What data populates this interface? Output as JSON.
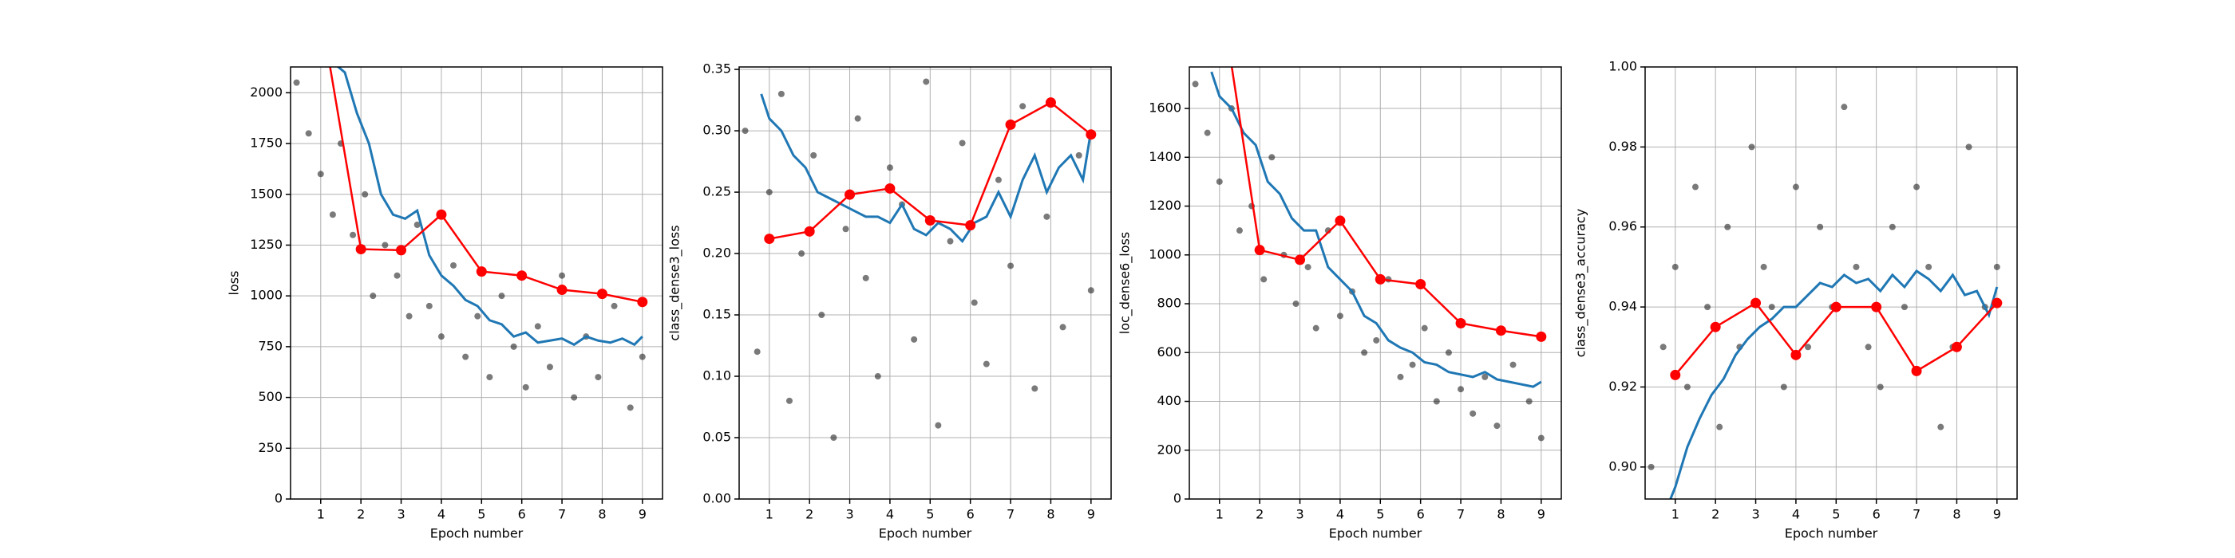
{
  "chart_data": [
    {
      "type": "scatter",
      "x_label": "Epoch number",
      "y_label": "loss",
      "xlim": [
        0.25,
        9.5
      ],
      "ylim": [
        0,
        2127
      ],
      "xticks": [
        1,
        2,
        3,
        4,
        5,
        6,
        7,
        8,
        9
      ],
      "yticks": [
        0,
        250,
        500,
        750,
        1000,
        1250,
        1500,
        1750,
        2000
      ],
      "grid": true,
      "series": [
        {
          "type": "scatter",
          "color": "#222222",
          "x": [
            0.4,
            0.7,
            1.0,
            1.3,
            1.5,
            1.8,
            2.1,
            2.3,
            2.6,
            2.9,
            3.2,
            3.4,
            3.7,
            4.0,
            4.3,
            4.6,
            4.9,
            5.2,
            5.5,
            5.8,
            6.1,
            6.4,
            6.7,
            7.0,
            7.3,
            7.6,
            7.9,
            8.3,
            8.7,
            9.0
          ],
          "values": [
            2050,
            1800,
            1600,
            1400,
            1750,
            1300,
            1500,
            1000,
            1250,
            1100,
            900,
            1350,
            950,
            800,
            1150,
            700,
            900,
            600,
            1000,
            750,
            550,
            850,
            650,
            1100,
            500,
            800,
            600,
            950,
            450,
            700
          ]
        },
        {
          "type": "line",
          "color": "#1f77b4",
          "x": [
            0.8,
            1,
            1.3,
            1.6,
            1.9,
            2.2,
            2.5,
            2.8,
            3.1,
            3.4,
            3.7,
            4,
            4.3,
            4.6,
            4.9,
            5.2,
            5.5,
            5.8,
            6.1,
            6.4,
            6.7,
            7,
            7.3,
            7.6,
            7.9,
            8.2,
            8.5,
            8.8,
            9
          ],
          "values": [
            2300,
            2200,
            2150,
            2100,
            1900,
            1750,
            1500,
            1400,
            1380,
            1420,
            1200,
            1100,
            1050,
            980,
            950,
            880,
            860,
            800,
            820,
            770,
            780,
            790,
            760,
            800,
            780,
            770,
            790,
            760,
            800
          ]
        },
        {
          "type": "line-markers",
          "color": "#ff0000",
          "x": [
            1,
            2,
            3,
            4,
            5,
            6,
            7,
            8,
            9
          ],
          "values": [
            2400,
            1230,
            1225,
            1400,
            1120,
            1100,
            1030,
            1010,
            970
          ]
        }
      ]
    },
    {
      "type": "scatter",
      "x_label": "Epoch number",
      "y_label": "class_dense3_loss",
      "xlim": [
        0.25,
        9.5
      ],
      "ylim": [
        0,
        0.352
      ],
      "xticks": [
        1,
        2,
        3,
        4,
        5,
        6,
        7,
        8,
        9
      ],
      "yticks": [
        {
          "value": 0,
          "label": "0.00"
        },
        0.05,
        {
          "value": 0.1,
          "label": "0.10"
        },
        0.15,
        {
          "value": 0.2,
          "label": "0.20"
        },
        0.25,
        {
          "value": 0.3,
          "label": "0.30"
        },
        0.35
      ],
      "grid": true,
      "series": [
        {
          "type": "scatter",
          "color": "#222222",
          "x": [
            0.4,
            0.7,
            1.0,
            1.3,
            1.5,
            1.8,
            2.1,
            2.3,
            2.6,
            2.9,
            3.2,
            3.4,
            3.7,
            4.0,
            4.3,
            4.6,
            4.9,
            5.2,
            5.5,
            5.8,
            6.1,
            6.4,
            6.7,
            7.0,
            7.3,
            7.6,
            7.9,
            8.3,
            8.7,
            9.0
          ],
          "values": [
            0.3,
            0.12,
            0.25,
            0.33,
            0.08,
            0.2,
            0.28,
            0.15,
            0.05,
            0.22,
            0.31,
            0.18,
            0.1,
            0.27,
            0.24,
            0.13,
            0.34,
            0.06,
            0.21,
            0.29,
            0.16,
            0.11,
            0.26,
            0.19,
            0.32,
            0.09,
            0.23,
            0.14,
            0.28,
            0.17
          ]
        },
        {
          "type": "line",
          "color": "#1f77b4",
          "x": [
            0.8,
            1,
            1.3,
            1.6,
            1.9,
            2.2,
            2.5,
            2.8,
            3.1,
            3.4,
            3.7,
            4,
            4.3,
            4.6,
            4.9,
            5.2,
            5.5,
            5.8,
            6.1,
            6.4,
            6.7,
            7,
            7.3,
            7.6,
            7.9,
            8.2,
            8.5,
            8.8,
            9
          ],
          "values": [
            0.33,
            0.31,
            0.3,
            0.28,
            0.27,
            0.25,
            0.245,
            0.24,
            0.235,
            0.23,
            0.23,
            0.225,
            0.24,
            0.22,
            0.215,
            0.225,
            0.22,
            0.21,
            0.225,
            0.23,
            0.25,
            0.23,
            0.26,
            0.28,
            0.25,
            0.27,
            0.28,
            0.26,
            0.3
          ]
        },
        {
          "type": "line-markers",
          "color": "#ff0000",
          "x": [
            1,
            2,
            3,
            4,
            5,
            6,
            7,
            8,
            9
          ],
          "values": [
            0.212,
            0.218,
            0.248,
            0.253,
            0.227,
            0.223,
            0.305,
            0.323,
            0.297
          ]
        }
      ]
    },
    {
      "type": "scatter",
      "x_label": "Epoch number",
      "y_label": "loc_dense6_loss",
      "xlim": [
        0.25,
        9.5
      ],
      "ylim": [
        0,
        1770
      ],
      "xticks": [
        1,
        2,
        3,
        4,
        5,
        6,
        7,
        8,
        9
      ],
      "yticks": [
        0,
        200,
        400,
        600,
        800,
        1000,
        1200,
        1400,
        1600
      ],
      "grid": true,
      "series": [
        {
          "type": "scatter",
          "color": "#222222",
          "x": [
            0.4,
            0.7,
            1.0,
            1.3,
            1.5,
            1.8,
            2.1,
            2.3,
            2.6,
            2.9,
            3.2,
            3.4,
            3.7,
            4.0,
            4.3,
            4.6,
            4.9,
            5.2,
            5.5,
            5.8,
            6.1,
            6.4,
            6.7,
            7.0,
            7.3,
            7.6,
            7.9,
            8.3,
            8.7,
            9.0
          ],
          "values": [
            1700,
            1500,
            1300,
            1600,
            1100,
            1200,
            900,
            1400,
            1000,
            800,
            950,
            700,
            1100,
            750,
            850,
            600,
            650,
            900,
            500,
            550,
            700,
            400,
            600,
            450,
            350,
            500,
            300,
            550,
            400,
            250
          ]
        },
        {
          "type": "line",
          "color": "#1f77b4",
          "x": [
            0.8,
            1,
            1.3,
            1.6,
            1.9,
            2.2,
            2.5,
            2.8,
            3.1,
            3.4,
            3.7,
            4,
            4.3,
            4.6,
            4.9,
            5.2,
            5.5,
            5.8,
            6.1,
            6.4,
            6.7,
            7,
            7.3,
            7.6,
            7.9,
            8.2,
            8.5,
            8.8,
            9
          ],
          "values": [
            1750,
            1650,
            1600,
            1500,
            1450,
            1300,
            1250,
            1150,
            1100,
            1100,
            950,
            900,
            850,
            750,
            720,
            650,
            620,
            600,
            560,
            550,
            520,
            510,
            500,
            520,
            490,
            480,
            470,
            460,
            480
          ]
        },
        {
          "type": "line-markers",
          "color": "#ff0000",
          "x": [
            1,
            2,
            3,
            4,
            5,
            6,
            7,
            8,
            9
          ],
          "values": [
            2100,
            1020,
            980,
            1140,
            900,
            880,
            720,
            690,
            665
          ]
        }
      ]
    },
    {
      "type": "scatter",
      "x_label": "Epoch number",
      "y_label": "class_dense3_accuracy",
      "xlim": [
        0.25,
        9.5
      ],
      "ylim": [
        0.892,
        1.0
      ],
      "xticks": [
        1,
        2,
        3,
        4,
        5,
        6,
        7,
        8,
        9
      ],
      "yticks": [
        {
          "value": 0.9,
          "label": "0.90"
        },
        0.92,
        0.94,
        0.96,
        0.98,
        {
          "value": 1.0,
          "label": "1.00"
        }
      ],
      "grid": true,
      "series": [
        {
          "type": "scatter",
          "color": "#222222",
          "x": [
            0.4,
            0.7,
            1.0,
            1.3,
            1.5,
            1.8,
            2.1,
            2.3,
            2.6,
            2.9,
            3.2,
            3.4,
            3.7,
            4.0,
            4.3,
            4.6,
            4.9,
            5.2,
            5.5,
            5.8,
            6.1,
            6.4,
            6.7,
            7.0,
            7.3,
            7.6,
            7.9,
            8.3,
            8.7,
            9.0
          ],
          "values": [
            0.9,
            0.93,
            0.95,
            0.92,
            0.97,
            0.94,
            0.91,
            0.96,
            0.93,
            0.98,
            0.95,
            0.94,
            0.92,
            0.97,
            0.93,
            0.96,
            0.94,
            0.99,
            0.95,
            0.93,
            0.92,
            0.96,
            0.94,
            0.97,
            0.95,
            0.91,
            0.93,
            0.98,
            0.94,
            0.95
          ]
        },
        {
          "type": "line",
          "color": "#1f77b4",
          "x": [
            0.8,
            1,
            1.3,
            1.6,
            1.9,
            2.2,
            2.5,
            2.8,
            3.1,
            3.4,
            3.7,
            4,
            4.3,
            4.6,
            4.9,
            5.2,
            5.5,
            5.8,
            6.1,
            6.4,
            6.7,
            7,
            7.3,
            7.6,
            7.9,
            8.2,
            8.5,
            8.8,
            9
          ],
          "values": [
            0.89,
            0.895,
            0.905,
            0.912,
            0.918,
            0.922,
            0.928,
            0.932,
            0.935,
            0.937,
            0.94,
            0.94,
            0.943,
            0.946,
            0.945,
            0.948,
            0.946,
            0.947,
            0.944,
            0.948,
            0.945,
            0.949,
            0.947,
            0.944,
            0.948,
            0.943,
            0.944,
            0.938,
            0.945
          ]
        },
        {
          "type": "line-markers",
          "color": "#ff0000",
          "x": [
            1,
            2,
            3,
            4,
            5,
            6,
            7,
            8,
            9
          ],
          "values": [
            0.923,
            0.935,
            0.941,
            0.928,
            0.94,
            0.94,
            0.924,
            0.93,
            0.941
          ]
        }
      ]
    }
  ]
}
